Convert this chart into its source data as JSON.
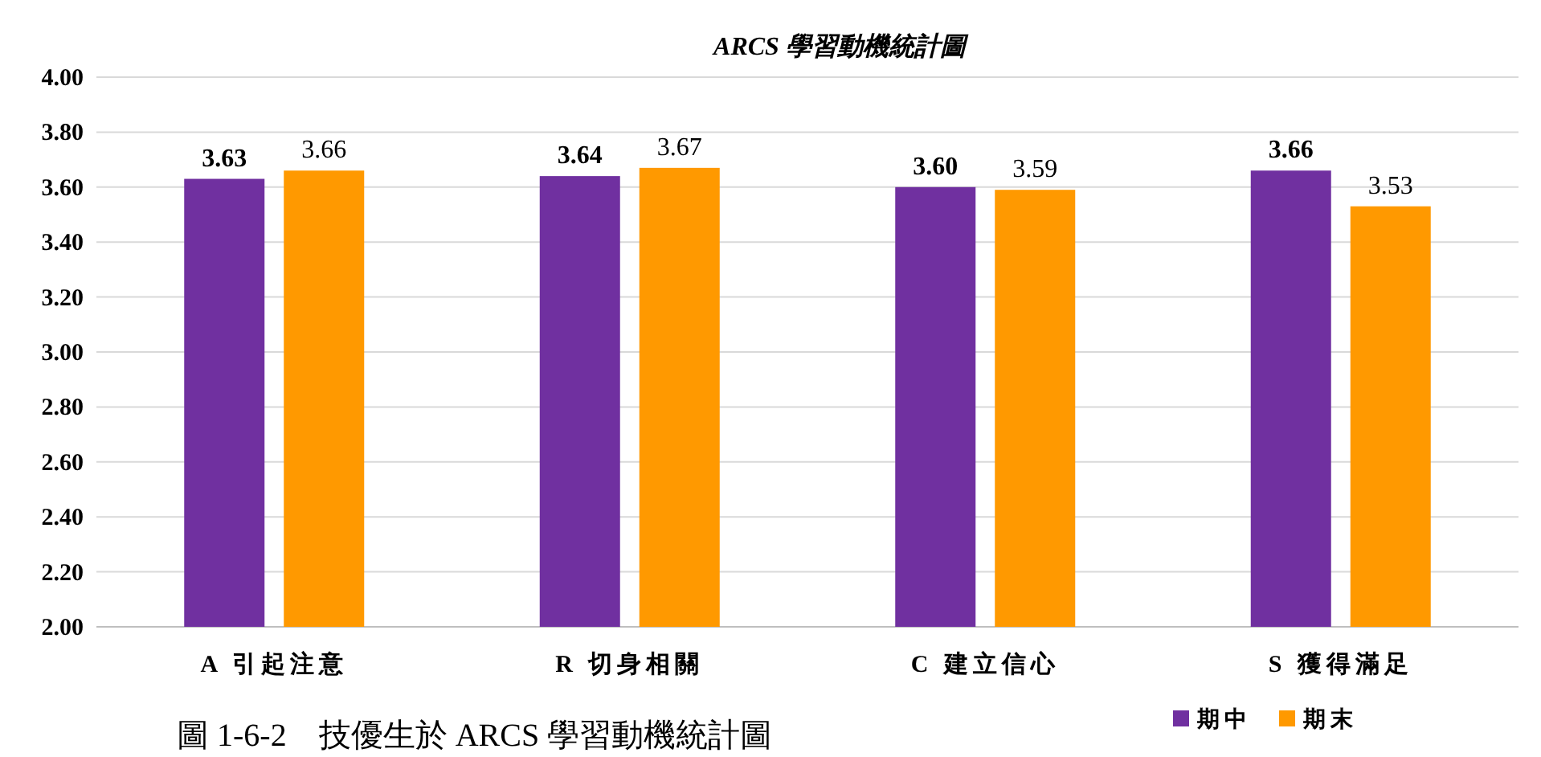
{
  "chart_data": {
    "type": "bar",
    "title": "ARCS 學習動機統計圖",
    "categories": [
      "A 引起注意",
      "R 切身相關",
      "C 建立信心",
      "S 獲得滿足"
    ],
    "series": [
      {
        "name": "期中",
        "color": "#7030a0",
        "values": [
          3.63,
          3.64,
          3.6,
          3.66
        ],
        "value_labels": [
          "3.63",
          "3.64",
          "3.60",
          "3.66"
        ]
      },
      {
        "name": "期末",
        "color": "#ff9900",
        "values": [
          3.66,
          3.67,
          3.59,
          3.53
        ],
        "value_labels": [
          "3.66",
          "3.67",
          "3.59",
          "3.53"
        ]
      }
    ],
    "ylim": [
      2.0,
      4.0
    ],
    "yticks": [
      {
        "value": 2.0,
        "label": "2.00"
      },
      {
        "value": 2.2,
        "label": "2.20"
      },
      {
        "value": 2.4,
        "label": "2.40"
      },
      {
        "value": 2.6,
        "label": "2.60"
      },
      {
        "value": 2.8,
        "label": "2.80"
      },
      {
        "value": 3.0,
        "label": "3.00"
      },
      {
        "value": 3.2,
        "label": "3.20"
      },
      {
        "value": 3.4,
        "label": "3.40"
      },
      {
        "value": 3.6,
        "label": "3.60"
      },
      {
        "value": 3.8,
        "label": "3.80"
      },
      {
        "value": 4.0,
        "label": "4.00"
      }
    ],
    "grid": "y",
    "legend": "bottom right",
    "annotations": [
      "圖 1-6-2　技優生於 ARCS 學習動機統計圖"
    ]
  }
}
